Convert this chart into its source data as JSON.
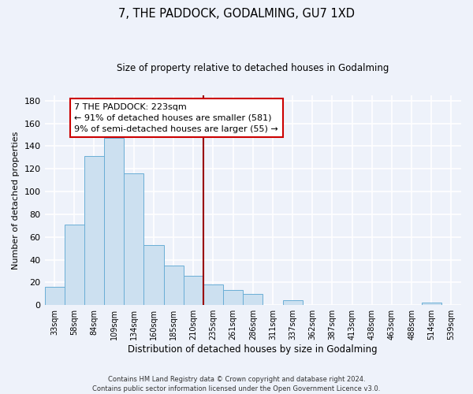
{
  "title": "7, THE PADDOCK, GODALMING, GU7 1XD",
  "subtitle": "Size of property relative to detached houses in Godalming",
  "xlabel": "Distribution of detached houses by size in Godalming",
  "ylabel": "Number of detached properties",
  "bin_labels": [
    "33sqm",
    "58sqm",
    "84sqm",
    "109sqm",
    "134sqm",
    "160sqm",
    "185sqm",
    "210sqm",
    "235sqm",
    "261sqm",
    "286sqm",
    "311sqm",
    "337sqm",
    "362sqm",
    "387sqm",
    "413sqm",
    "438sqm",
    "463sqm",
    "488sqm",
    "514sqm",
    "539sqm"
  ],
  "bar_values": [
    16,
    71,
    131,
    147,
    116,
    53,
    35,
    26,
    18,
    13,
    10,
    0,
    4,
    0,
    0,
    0,
    0,
    0,
    0,
    2,
    0
  ],
  "bar_color": "#cce0f0",
  "bar_edge_color": "#6aaed6",
  "ylim": [
    0,
    185
  ],
  "yticks": [
    0,
    20,
    40,
    60,
    80,
    100,
    120,
    140,
    160,
    180
  ],
  "vline_color": "#990000",
  "annotation_line1": "7 THE PADDOCK: 223sqm",
  "annotation_line2": "← 91% of detached houses are smaller (581)",
  "annotation_line3": "9% of semi-detached houses are larger (55) →",
  "annotation_box_color": "#ffffff",
  "annotation_box_edge_color": "#cc0000",
  "footnote": "Contains HM Land Registry data © Crown copyright and database right 2024.\nContains public sector information licensed under the Open Government Licence v3.0.",
  "background_color": "#eef2fa",
  "grid_color": "#ffffff"
}
